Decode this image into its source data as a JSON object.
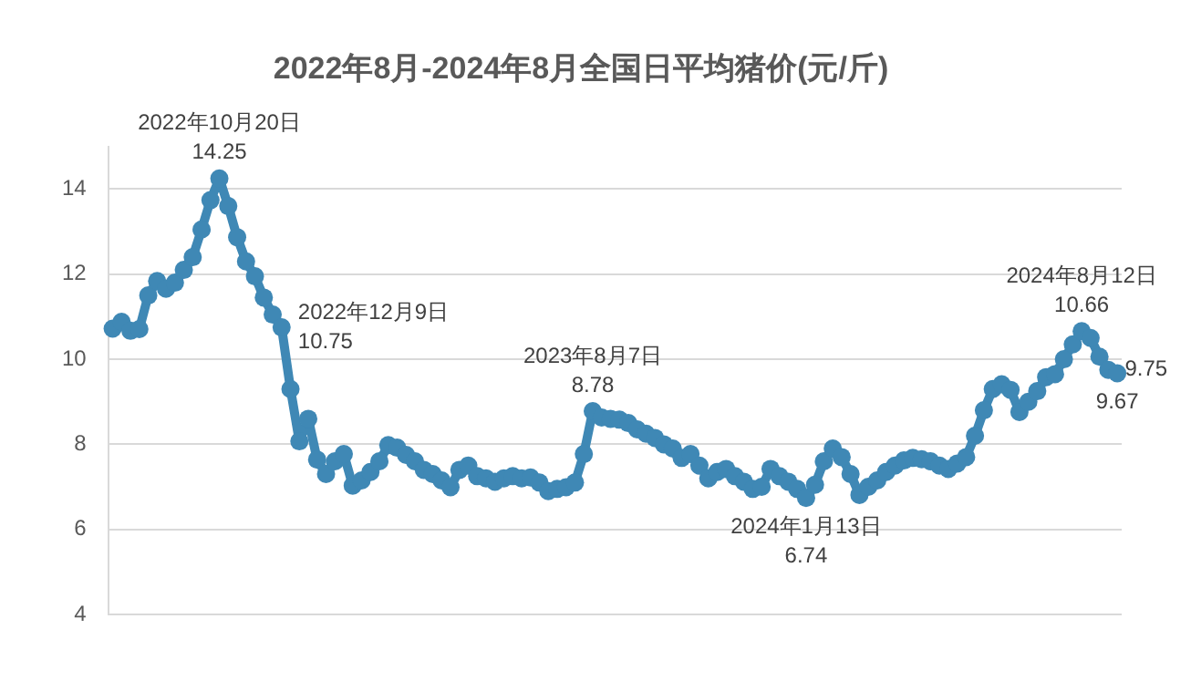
{
  "chart_data": {
    "type": "line",
    "title": "2022年8月-2024年8月全国日平均猪价(元/斤)",
    "categories": [
      null,
      null,
      null,
      null,
      null,
      null,
      null,
      null,
      null,
      null,
      null,
      null,
      null,
      null,
      null,
      null,
      null,
      null,
      null,
      null,
      null,
      null,
      null,
      null,
      null,
      null,
      null,
      null,
      null,
      null,
      null,
      null,
      null,
      null,
      null,
      null,
      null,
      null,
      null,
      null,
      null,
      null,
      null,
      null,
      null,
      null,
      null,
      null,
      null,
      null,
      null,
      null,
      null,
      null,
      null,
      null,
      null,
      null,
      null,
      null,
      null,
      null,
      null,
      null,
      null,
      null,
      null,
      null,
      null,
      null,
      null,
      null,
      null,
      null,
      null,
      null,
      null,
      null,
      null,
      null,
      null,
      null,
      null,
      null,
      null,
      null,
      null,
      null,
      null,
      null,
      null,
      null,
      null,
      null,
      null,
      null,
      null,
      null,
      null,
      null,
      null,
      null,
      null,
      null,
      null,
      null,
      null,
      null,
      null,
      null,
      null,
      null,
      null,
      null
    ],
    "series": [
      {
        "color": "#3f88b5",
        "values": [
          10.72,
          10.88,
          10.67,
          10.71,
          11.5,
          11.84,
          11.66,
          11.8,
          12.1,
          12.4,
          13.05,
          13.74,
          14.25,
          13.6,
          12.87,
          12.3,
          11.95,
          11.45,
          11.05,
          10.75,
          9.3,
          8.07,
          8.6,
          7.64,
          7.3,
          7.6,
          7.77,
          7.03,
          7.15,
          7.35,
          7.6,
          7.98,
          7.92,
          7.75,
          7.6,
          7.4,
          7.3,
          7.15,
          6.99,
          7.4,
          7.5,
          7.25,
          7.2,
          7.12,
          7.2,
          7.25,
          7.2,
          7.22,
          7.1,
          6.9,
          6.95,
          6.99,
          7.1,
          7.77,
          8.78,
          8.63,
          8.6,
          8.58,
          8.5,
          8.35,
          8.25,
          8.15,
          8.0,
          7.9,
          7.68,
          7.77,
          7.5,
          7.2,
          7.35,
          7.42,
          7.25,
          7.12,
          6.95,
          7.0,
          7.42,
          7.25,
          7.12,
          6.95,
          6.74,
          7.05,
          7.6,
          7.9,
          7.7,
          7.3,
          6.81,
          7.0,
          7.15,
          7.35,
          7.5,
          7.62,
          7.68,
          7.65,
          7.6,
          7.5,
          7.42,
          7.55,
          7.7,
          8.2,
          8.8,
          9.3,
          9.41,
          9.28,
          8.76,
          9.0,
          9.25,
          9.58,
          9.65,
          10.0,
          10.35,
          10.66,
          10.5,
          10.06,
          9.75,
          9.67
        ],
        "value_labels": [
          null,
          null,
          null,
          null,
          null,
          null,
          null,
          null,
          null,
          null,
          null,
          null,
          "2022年10月20日\n14.25",
          null,
          null,
          null,
          null,
          null,
          null,
          "2022年12月9日\n10.75",
          null,
          null,
          null,
          null,
          null,
          null,
          null,
          null,
          null,
          null,
          null,
          null,
          null,
          null,
          null,
          null,
          null,
          null,
          null,
          null,
          null,
          null,
          null,
          null,
          null,
          null,
          null,
          null,
          null,
          null,
          null,
          null,
          null,
          null,
          "2023年8月7日\n8.78",
          null,
          null,
          null,
          null,
          null,
          null,
          null,
          null,
          null,
          null,
          null,
          null,
          null,
          null,
          null,
          null,
          null,
          null,
          null,
          null,
          null,
          null,
          null,
          "2024年1月13日\n6.74",
          null,
          null,
          null,
          null,
          null,
          null,
          null,
          null,
          null,
          null,
          null,
          null,
          null,
          null,
          null,
          null,
          null,
          null,
          null,
          null,
          null,
          null,
          null,
          null,
          null,
          null,
          null,
          null,
          null,
          null,
          "2024年8月12日\n10.66",
          null,
          null,
          "9.75",
          "9.67"
        ]
      }
    ],
    "ylim": [
      4,
      15
    ],
    "yticks": [
      4,
      6,
      8,
      10,
      12,
      14
    ],
    "grid": "y",
    "tick_labels": "y",
    "marker": "circle",
    "line_style": "solid",
    "legend": false
  }
}
